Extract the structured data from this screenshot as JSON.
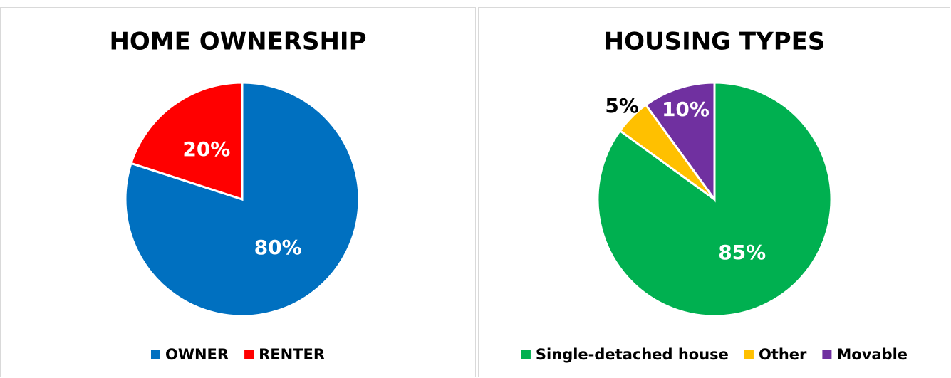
{
  "chart_data": [
    {
      "type": "pie",
      "title": "HOME OWNERSHIP",
      "categories": [
        "OWNER",
        "RENTER"
      ],
      "values": [
        80,
        20
      ],
      "value_labels": [
        "80%",
        "20%"
      ],
      "colors": [
        "#0070c0",
        "#ff0000"
      ],
      "legend": "bottom"
    },
    {
      "type": "pie",
      "title": "HOUSING TYPES",
      "categories": [
        "Single-detached house",
        "Other",
        "Movable"
      ],
      "values": [
        85,
        5,
        10
      ],
      "value_labels": [
        "85%",
        "5%",
        "10%"
      ],
      "colors": [
        "#00b050",
        "#ffc000",
        "#7030a0"
      ],
      "legend": "bottom"
    }
  ]
}
